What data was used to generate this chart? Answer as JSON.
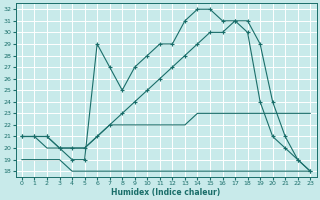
{
  "xlabel": "Humidex (Indice chaleur)",
  "xlim": [
    -0.5,
    23.5
  ],
  "ylim": [
    17.5,
    32.5
  ],
  "xticks": [
    0,
    1,
    2,
    3,
    4,
    5,
    6,
    7,
    8,
    9,
    10,
    11,
    12,
    13,
    14,
    15,
    16,
    17,
    18,
    19,
    20,
    21,
    22,
    23
  ],
  "yticks": [
    18,
    19,
    20,
    21,
    22,
    23,
    24,
    25,
    26,
    27,
    28,
    29,
    30,
    31,
    32
  ],
  "bg_color": "#c8eaea",
  "line_color": "#1a6e6a",
  "grid_color": "#b0d8d8",
  "line1_x": [
    0,
    1,
    2,
    3,
    4,
    5,
    6,
    7,
    8,
    9,
    10,
    11,
    12,
    13,
    14,
    15,
    16,
    17,
    18,
    19,
    20,
    21,
    22,
    23
  ],
  "line1_y": [
    19,
    19,
    19,
    19,
    18,
    18,
    18,
    18,
    18,
    18,
    18,
    18,
    18,
    18,
    18,
    18,
    18,
    18,
    18,
    18,
    18,
    18,
    18,
    18
  ],
  "line2_x": [
    0,
    1,
    2,
    3,
    4,
    5,
    6,
    7,
    8,
    9,
    10,
    11,
    12,
    13,
    14,
    15,
    16,
    17,
    18,
    19,
    20,
    21,
    22,
    23
  ],
  "line2_y": [
    21,
    21,
    20,
    20,
    20,
    20,
    21,
    22,
    22,
    22,
    22,
    22,
    22,
    22,
    23,
    23,
    23,
    23,
    23,
    23,
    23,
    23,
    23,
    23
  ],
  "line3_x": [
    0,
    1,
    2,
    3,
    4,
    5,
    6,
    7,
    8,
    9,
    10,
    11,
    12,
    13,
    14,
    15,
    16,
    17,
    18,
    19,
    20,
    21,
    22,
    23
  ],
  "line3_y": [
    21,
    21,
    21,
    20,
    20,
    20,
    21,
    22,
    23,
    24,
    25,
    26,
    27,
    28,
    29,
    30,
    30,
    31,
    30,
    24,
    21,
    20,
    19,
    18
  ],
  "line4_x": [
    0,
    1,
    2,
    3,
    4,
    5,
    6,
    7,
    8,
    9,
    10,
    11,
    12,
    13,
    14,
    15,
    16,
    17,
    18,
    19,
    20,
    21,
    22,
    23
  ],
  "line4_y": [
    21,
    21,
    21,
    20,
    19,
    19,
    29,
    27,
    25,
    27,
    28,
    29,
    29,
    31,
    32,
    32,
    31,
    31,
    31,
    29,
    24,
    21,
    19,
    18
  ]
}
